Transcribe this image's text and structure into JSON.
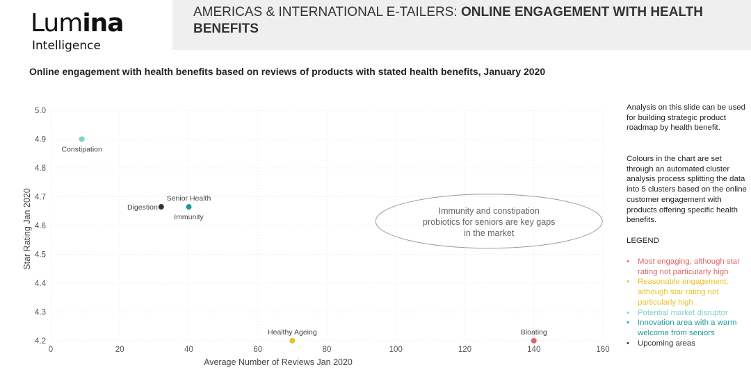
{
  "logo": {
    "main_light": "Lum",
    "main_bold": "ina",
    "sub": "Intelligence"
  },
  "header": {
    "title_prefix": "AMERICAS & INTERNATIONAL E-TAILERS: ",
    "title_bold": "ONLINE ENGAGEMENT WITH HEALTH BENEFITS"
  },
  "subtitle": "Online engagement with health benefits based on reviews of products with stated health benefits, January 2020",
  "colors": {
    "most_engaging": "#e06666",
    "reasonable": "#e6c229",
    "disruptor": "#7fd1c7",
    "innovation": "#1f9a9a",
    "upcoming": "#333333"
  },
  "chart_data": {
    "type": "scatter",
    "title": "Online engagement with health benefits based on reviews of products with stated health benefits, January 2020",
    "xlabel": "Average Number of Reviews Jan 2020",
    "ylabel": "Star Rating Jan 2020",
    "xlim": [
      0,
      160
    ],
    "ylim": [
      4.2,
      5.0
    ],
    "xticks": [
      0,
      20,
      40,
      60,
      80,
      100,
      120,
      140,
      160
    ],
    "yticks": [
      "4.2",
      "4.3",
      "4.4",
      "4.5",
      "4.6",
      "4.7",
      "4.8",
      "4.9",
      "5.0"
    ],
    "grid": true,
    "points": [
      {
        "label": "Constipation",
        "x": 9,
        "y": 4.9,
        "cluster": "disruptor",
        "label_pos": "below"
      },
      {
        "label": "Digestion",
        "x": 32,
        "y": 4.665,
        "cluster": "upcoming",
        "label_pos": "left"
      },
      {
        "label": "Senior Health",
        "x": 40,
        "y": 4.665,
        "cluster": "innovation",
        "label_pos": "above"
      },
      {
        "label": "Immunity",
        "x": 40,
        "y": 4.665,
        "cluster": "innovation",
        "label_pos": "below"
      },
      {
        "label": "Healthy Ageing",
        "x": 70,
        "y": 4.2,
        "cluster": "reasonable",
        "label_pos": "above"
      },
      {
        "label": "Bloating",
        "x": 140,
        "y": 4.2,
        "cluster": "most_engaging",
        "label_pos": "above"
      }
    ],
    "annotation": {
      "lines": [
        "Immunity and constipation",
        "probiotics for seniors are key gaps",
        "in the market"
      ],
      "x": 127,
      "y": 4.615
    }
  },
  "side_notes": {
    "para1": "Analysis on this slide can be used for building strategic product roadmap by health benefit.",
    "para2": "Colours in the chart are set through an automated cluster analysis process splitting the data into 5 clusters based on the online customer engagement with products offering specific health benefits."
  },
  "legend": {
    "title": "LEGEND",
    "items": [
      {
        "text": "Most engaging, although star rating not particularly high",
        "color": "#e06666"
      },
      {
        "text": "Reasonable engagement, although star rating not particularly high",
        "color": "#e6c229"
      },
      {
        "text": "Potential market disruptor",
        "color": "#7fd1c7"
      },
      {
        "text": "Innovation area with a warm welcome from seniors",
        "color": "#1f9a9a"
      },
      {
        "text": "Upcoming areas",
        "color": "#333333"
      }
    ]
  }
}
